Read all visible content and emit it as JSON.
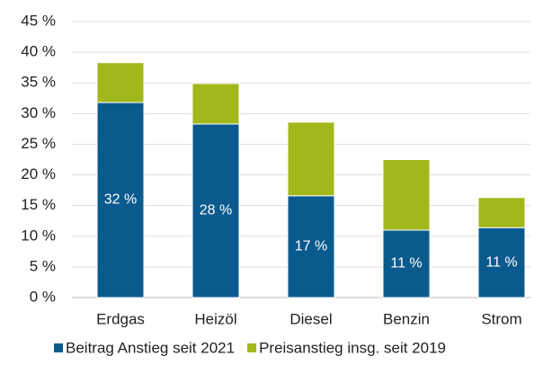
{
  "chart_data": {
    "type": "stacked_bar",
    "categories": [
      "Erdgas",
      "Heizöl",
      "Diesel",
      "Benzin",
      "Strom"
    ],
    "series": [
      {
        "name": "Beitrag Anstieg seit 2021",
        "color": "#0b5a8e",
        "values": [
          31.8,
          28.3,
          16.6,
          11.0,
          11.4
        ],
        "value_labels": [
          "32 %",
          "28 %",
          "17 %",
          "11 %",
          "11 %"
        ]
      },
      {
        "name": "Preisanstieg insg. seit 2019",
        "color": "#a2b71b",
        "values": [
          6.5,
          6.6,
          12.0,
          11.5,
          4.9
        ]
      }
    ],
    "ylim": [
      0,
      45
    ],
    "yticks": [
      {
        "value": 0,
        "label": "0 %"
      },
      {
        "value": 5,
        "label": "5 %"
      },
      {
        "value": 10,
        "label": "10 %"
      },
      {
        "value": 15,
        "label": "15 %"
      },
      {
        "value": 20,
        "label": "20 %"
      },
      {
        "value": 25,
        "label": "25 %"
      },
      {
        "value": 30,
        "label": "30 %"
      },
      {
        "value": 35,
        "label": "35 %"
      },
      {
        "value": 40,
        "label": "40 %"
      },
      {
        "value": 45,
        "label": "45 %"
      }
    ],
    "grid": true,
    "legend": "bottom"
  }
}
